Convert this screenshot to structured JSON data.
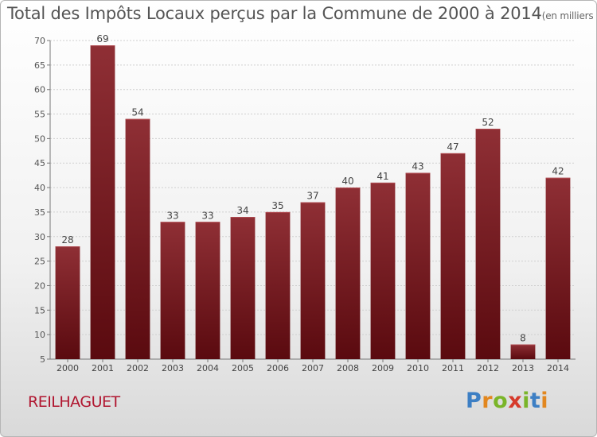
{
  "title": "Total des Impôts Locaux perçus par la Commune de 2000 à 2014",
  "title_unit": "(en milliers d'€)",
  "commune_name": "REILHAGUET",
  "logo": {
    "text": "Proxiti",
    "letter_colors": [
      "#3d7fc4",
      "#e2871f",
      "#7ab529",
      "#d63a2b",
      "#7ab529",
      "#3d7fc4",
      "#e2871f"
    ]
  },
  "colors": {
    "bar_top": "#8f2f35",
    "bar_bottom": "#5a0a0f",
    "commune_text": "#b0152f"
  },
  "chart_data": {
    "type": "bar",
    "title": "Total des Impôts Locaux perçus par la Commune de 2000 à 2014",
    "xlabel": "",
    "ylabel": "",
    "categories": [
      "2000",
      "2001",
      "2002",
      "2003",
      "2004",
      "2005",
      "2006",
      "2007",
      "2008",
      "2009",
      "2010",
      "2011",
      "2012",
      "2013",
      "2014"
    ],
    "values": [
      28,
      69,
      54,
      33,
      33,
      34,
      35,
      37,
      40,
      41,
      43,
      47,
      52,
      8,
      42
    ],
    "data_labels": [
      "28",
      "69",
      "54",
      "33",
      "33",
      "34",
      "35",
      "37",
      "40",
      "41",
      "43",
      "47",
      "52",
      "8",
      "42"
    ],
    "ylim": [
      5,
      70
    ],
    "yticks": [
      5,
      10,
      15,
      20,
      25,
      30,
      35,
      40,
      45,
      50,
      55,
      60,
      65,
      70
    ],
    "grid": true,
    "legend": "none"
  }
}
